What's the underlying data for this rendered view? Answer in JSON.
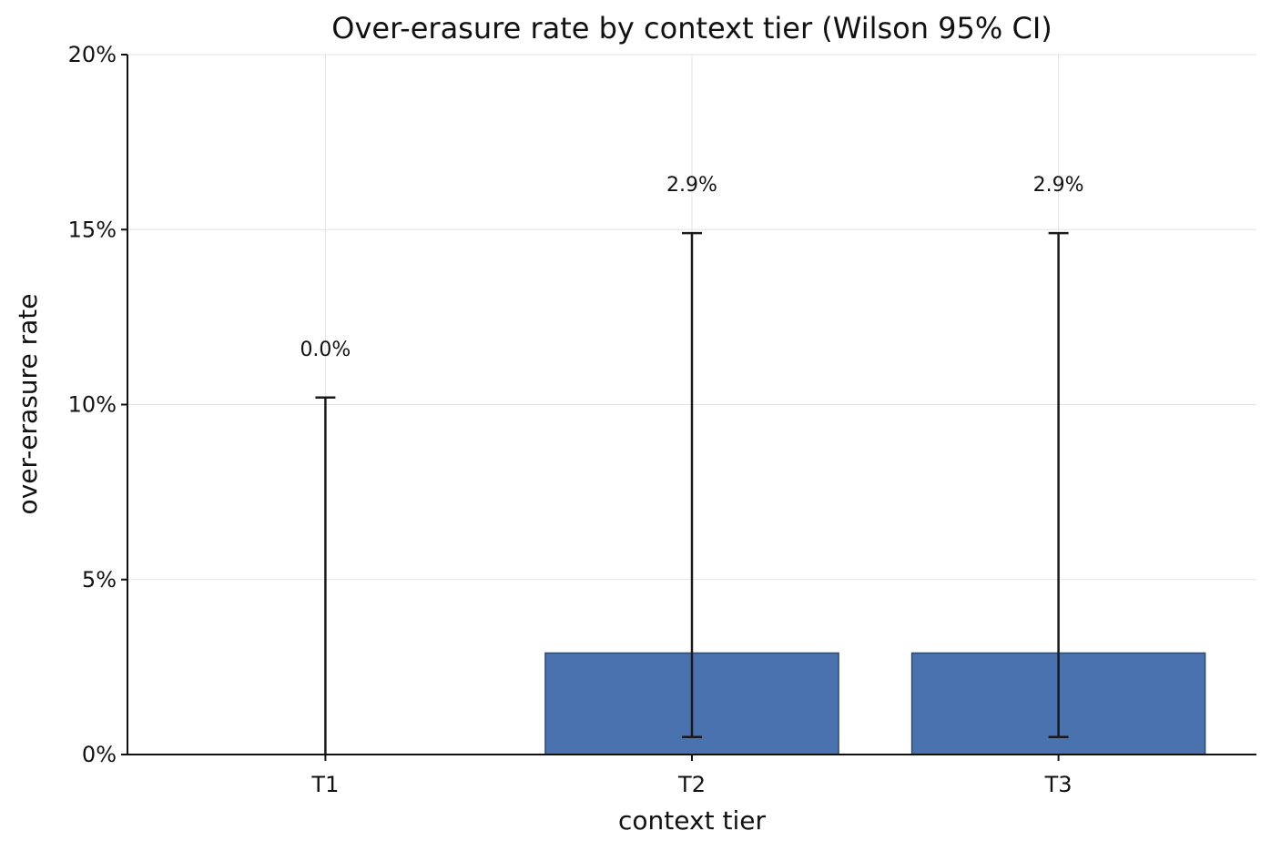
{
  "chart_data": {
    "type": "bar",
    "title": "Over-erasure rate by context tier (Wilson 95% CI)",
    "xlabel": "context tier",
    "ylabel": "over-erasure rate",
    "categories": [
      "T1",
      "T2",
      "T3"
    ],
    "values": [
      0.0,
      2.9,
      2.9
    ],
    "ci_lower": [
      0.0,
      0.5,
      0.5
    ],
    "ci_upper": [
      10.2,
      14.9,
      14.9
    ],
    "value_labels": [
      "0.0%",
      "2.9%",
      "2.9%"
    ],
    "y_unit": "percent",
    "ylim": [
      0,
      20
    ],
    "y_ticks": [
      0,
      5,
      10,
      15,
      20
    ],
    "y_tick_labels": [
      "0%",
      "5%",
      "10%",
      "15%",
      "20%"
    ],
    "grid": true,
    "legend": "none",
    "colors": {
      "bar_fill": "#4a72ae",
      "bar_edge": "#2c4a78",
      "error_bar": "#1a1a1a",
      "grid": "#e3e3e3",
      "axis": "#111111"
    }
  }
}
